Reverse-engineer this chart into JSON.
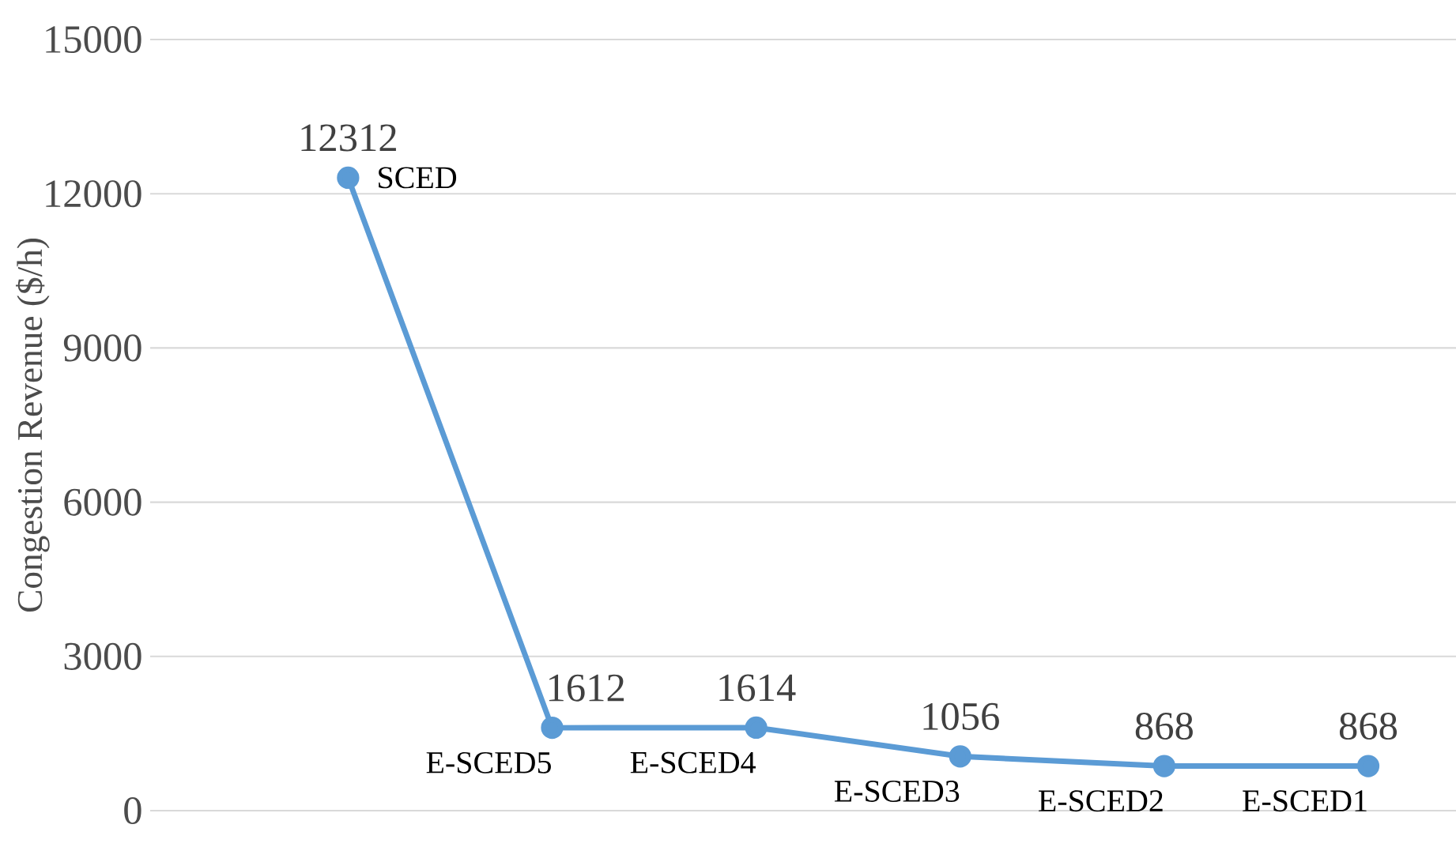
{
  "chart_data": {
    "type": "line",
    "ylabel": "Congestion Revenue ($/h)",
    "categories": [
      null,
      null,
      null,
      null,
      null,
      null
    ],
    "values": [
      12312,
      1612,
      1614,
      1056,
      868,
      868
    ],
    "annotations": [
      "SCED",
      "E-SCED5",
      "E-SCED4",
      "E-SCED3",
      "E-SCED2",
      "E-SCED1"
    ],
    "color": "#5b9bd5",
    "marker": "circle",
    "data_labels": true,
    "ylim": [
      0,
      15000
    ],
    "yticks": [
      0,
      3000,
      6000,
      9000,
      12000,
      15000
    ],
    "grid": "y"
  }
}
